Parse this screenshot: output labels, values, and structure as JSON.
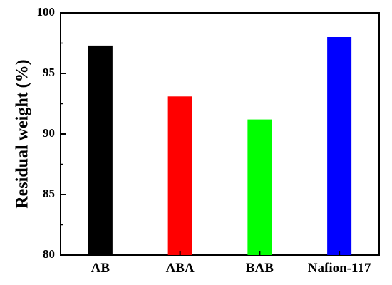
{
  "chart_data": {
    "type": "bar",
    "categories": [
      "AB",
      "ABA",
      "BAB",
      "Nafion-117"
    ],
    "values": [
      97.3,
      93.1,
      91.2,
      98.0
    ],
    "colors": [
      "#000000",
      "#ff0000",
      "#00ff00",
      "#0000ff"
    ],
    "title": "",
    "xlabel": "",
    "ylabel": "Residual weight (%)",
    "ylim": [
      80,
      100
    ],
    "yticks": [
      80,
      85,
      90,
      95,
      100
    ],
    "grid": false,
    "legend": "none"
  }
}
